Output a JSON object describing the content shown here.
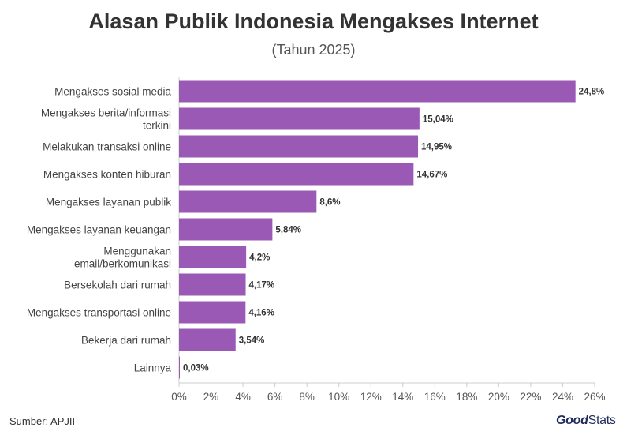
{
  "header": {
    "title": "Alasan Publik Indonesia Mengakses Internet",
    "subtitle": "(Tahun 2025)"
  },
  "footer": {
    "source": "Sumber: APJII",
    "brand_part1": "Good",
    "brand_part2": "Stats"
  },
  "colors": {
    "bar": "#9b59b6",
    "axis": "#cccccc"
  },
  "chart_data": {
    "type": "bar",
    "orientation": "horizontal",
    "categories": [
      [
        "Mengakses sosial media"
      ],
      [
        "Mengakses berita/informasi",
        "terkini"
      ],
      [
        "Melakukan transaksi online"
      ],
      [
        "Mengakses konten hiburan"
      ],
      [
        "Mengakses layanan publik"
      ],
      [
        "Mengakses layanan keuangan"
      ],
      [
        "Menggunakan",
        "email/berkomunikasi"
      ],
      [
        "Bersekolah dari rumah"
      ],
      [
        "Mengakses transportasi online"
      ],
      [
        "Bekerja dari rumah"
      ],
      [
        "Lainnya"
      ]
    ],
    "values": [
      24.8,
      15.04,
      14.95,
      14.67,
      8.6,
      5.84,
      4.2,
      4.17,
      4.16,
      3.54,
      0.03
    ],
    "value_labels": [
      "24,8%",
      "15,04%",
      "14,95%",
      "14,67%",
      "8,6%",
      "5,84%",
      "4,2%",
      "4,17%",
      "4,16%",
      "3,54%",
      "0,03%"
    ],
    "xlim": [
      0,
      26
    ],
    "ticks": [
      0,
      2,
      4,
      6,
      8,
      10,
      12,
      14,
      16,
      18,
      20,
      22,
      24,
      26
    ],
    "tick_labels": [
      "0%",
      "2%",
      "4%",
      "6%",
      "8%",
      "10%",
      "12%",
      "14%",
      "16%",
      "18%",
      "20%",
      "22%",
      "24%",
      "26%"
    ],
    "grid": false,
    "legend": "none"
  }
}
